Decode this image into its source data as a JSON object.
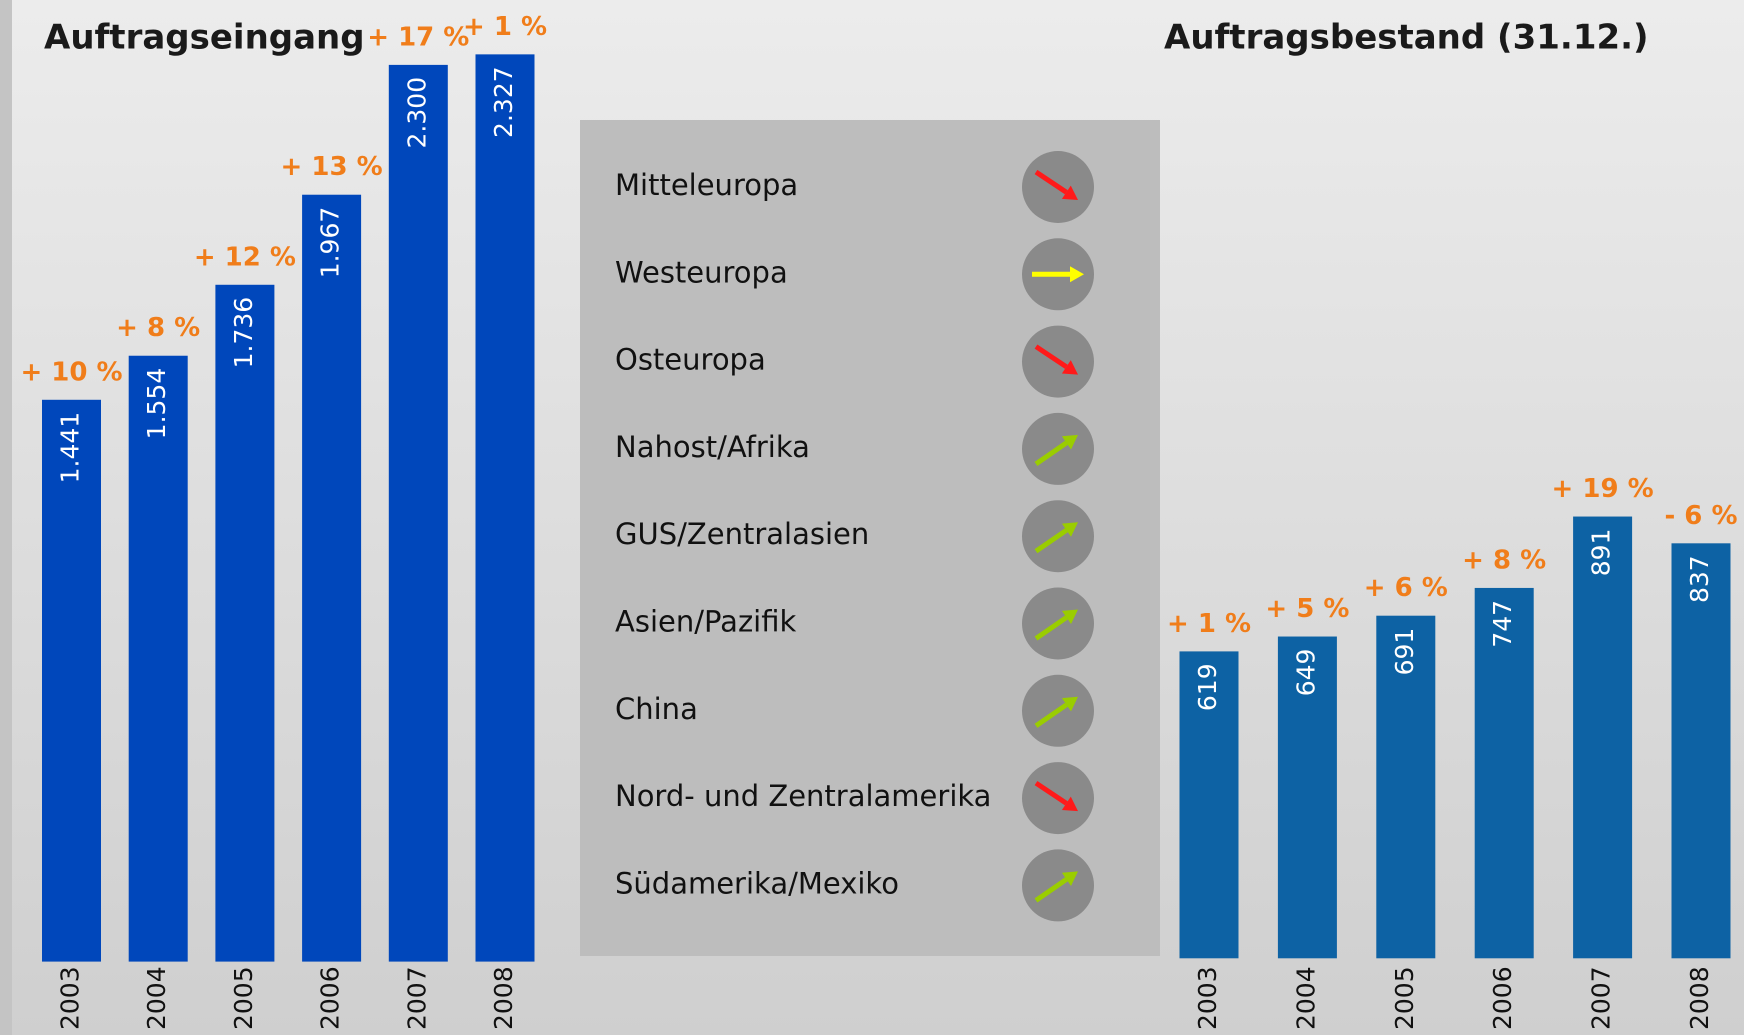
{
  "charts": [
    {
      "chart_data": {
        "type": "bar",
        "title": "Auftragseingang",
        "categories": [
          "2003",
          "2004",
          "2005",
          "2006",
          "2007",
          "2008"
        ],
        "values": [
          1441,
          1554,
          1736,
          1967,
          2300,
          2327
        ],
        "value_labels": [
          "1.441",
          "1.554",
          "1.736",
          "1.967",
          "2.300",
          "2.327"
        ],
        "annotations": [
          "+ 10 %",
          "+ 8 %",
          "+ 12 %",
          "+ 13 %",
          "+ 17 %",
          "+ 1 %"
        ],
        "color": "#0047bb",
        "ylim": [
          0,
          2400
        ]
      }
    },
    {
      "chart_data": {
        "type": "bar",
        "title": "Auftragsbestand (31.12.)",
        "categories": [
          "2003",
          "2004",
          "2005",
          "2006",
          "2007",
          "2008"
        ],
        "values": [
          619,
          649,
          691,
          747,
          891,
          837
        ],
        "annotations": [
          "+ 1 %",
          "+ 5 %",
          "+ 6 %",
          "+ 8 %",
          "+ 19 %",
          "- 6 %"
        ],
        "color": "#0d62a4",
        "ylim": [
          0,
          1000
        ]
      }
    }
  ],
  "legend": {
    "regions": [
      {
        "label": "Mitteleuropa",
        "trend": "down"
      },
      {
        "label": "Westeuropa",
        "trend": "flat"
      },
      {
        "label": "Osteuropa",
        "trend": "down"
      },
      {
        "label": "Nahost/Afrika",
        "trend": "up"
      },
      {
        "label": "GUS/Zentralasien",
        "trend": "up"
      },
      {
        "label": "Asien/Pazifik",
        "trend": "up"
      },
      {
        "label": "China",
        "trend": "up"
      },
      {
        "label": "Nord- und Zentralamerika",
        "trend": "down"
      },
      {
        "label": "Südamerika/Mexiko",
        "trend": "up"
      }
    ]
  }
}
